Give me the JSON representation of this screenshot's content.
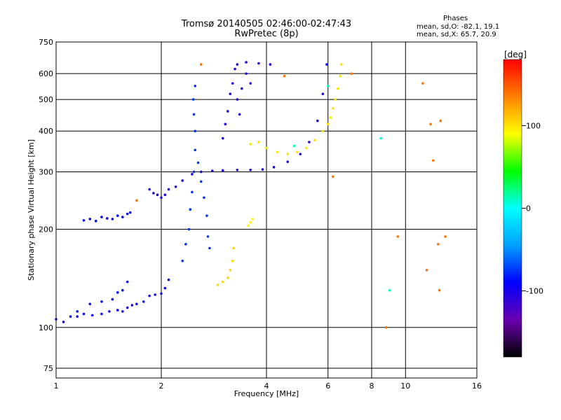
{
  "header": {
    "title": "Tromsø 20140505 02:46:00-02:47:43",
    "subtitle": "RwPretec (8p)",
    "stats_title": "Phases",
    "stats_o": "mean, sd,O: -82.1, 19.1",
    "stats_x": "mean, sd,X: 65.7, 20.9"
  },
  "colorbar": {
    "label": "[deg]",
    "range": [
      -180,
      180
    ],
    "ticks": [
      100,
      0,
      -100
    ],
    "colors": [
      "#000000",
      "#6a00b0",
      "#0000ff",
      "#00a0ff",
      "#00ffff",
      "#00ff00",
      "#ffff00",
      "#ff8000",
      "#ff0000"
    ]
  },
  "chart_data": {
    "type": "scatter",
    "xlabel": "Frequency [MHz]",
    "ylabel": "Stationary phase Virtual Height [km]",
    "x_scale": "log",
    "y_scale": "log",
    "xlim": [
      1,
      16
    ],
    "ylim": [
      70,
      750
    ],
    "x_ticks": [
      1,
      2,
      4,
      6,
      8,
      10,
      16
    ],
    "y_ticks": [
      75,
      100,
      200,
      300,
      400,
      500,
      600,
      750
    ],
    "grid": true,
    "series": [
      {
        "phase": -95,
        "points": [
          [
            1.0,
            106
          ],
          [
            1.05,
            104
          ],
          [
            1.1,
            108
          ],
          [
            1.15,
            108
          ],
          [
            1.2,
            110
          ],
          [
            1.27,
            109
          ],
          [
            1.35,
            110
          ],
          [
            1.42,
            112
          ],
          [
            1.5,
            113
          ],
          [
            1.55,
            112
          ],
          [
            1.6,
            115
          ],
          [
            1.65,
            117
          ],
          [
            1.7,
            118
          ],
          [
            1.78,
            120
          ],
          [
            1.85,
            125
          ],
          [
            1.92,
            126
          ],
          [
            2.0,
            127
          ],
          [
            2.05,
            132
          ],
          [
            2.1,
            140
          ]
        ]
      },
      {
        "phase": -90,
        "points": [
          [
            1.15,
            112
          ],
          [
            1.25,
            118
          ],
          [
            1.35,
            120
          ],
          [
            1.45,
            122
          ],
          [
            1.5,
            128
          ],
          [
            1.55,
            130
          ],
          [
            1.6,
            138
          ]
        ]
      },
      {
        "phase": -90,
        "points": [
          [
            1.2,
            213
          ],
          [
            1.25,
            215
          ],
          [
            1.3,
            212
          ],
          [
            1.35,
            218
          ],
          [
            1.4,
            216
          ],
          [
            1.45,
            215
          ],
          [
            1.5,
            220
          ],
          [
            1.55,
            218
          ],
          [
            1.6,
            223
          ],
          [
            1.63,
            225
          ]
        ]
      },
      {
        "phase": -100,
        "points": [
          [
            1.85,
            265
          ],
          [
            1.9,
            258
          ],
          [
            1.95,
            255
          ],
          [
            2.0,
            250
          ],
          [
            2.05,
            255
          ],
          [
            2.1,
            265
          ],
          [
            2.2,
            270
          ],
          [
            2.3,
            282
          ],
          [
            2.45,
            295
          ],
          [
            2.6,
            300
          ],
          [
            2.8,
            302
          ],
          [
            3.0,
            303
          ],
          [
            3.3,
            304
          ],
          [
            3.6,
            304
          ],
          [
            3.9,
            305
          ],
          [
            4.2,
            310
          ],
          [
            4.6,
            322
          ],
          [
            5.0,
            340
          ],
          [
            5.3,
            370
          ],
          [
            5.6,
            430
          ],
          [
            5.8,
            520
          ],
          [
            5.95,
            640
          ]
        ]
      },
      {
        "phase": -75,
        "points": [
          [
            2.3,
            160
          ],
          [
            2.35,
            180
          ],
          [
            2.4,
            200
          ],
          [
            2.42,
            230
          ],
          [
            2.45,
            260
          ],
          [
            2.48,
            300
          ],
          [
            2.5,
            350
          ],
          [
            2.5,
            400
          ],
          [
            2.48,
            450
          ],
          [
            2.47,
            500
          ],
          [
            2.5,
            550
          ],
          [
            2.55,
            320
          ],
          [
            2.6,
            280
          ],
          [
            2.65,
            250
          ],
          [
            2.7,
            220
          ],
          [
            2.72,
            190
          ],
          [
            2.75,
            175
          ]
        ]
      },
      {
        "phase": -105,
        "points": [
          [
            3.0,
            380
          ],
          [
            3.05,
            420
          ],
          [
            3.1,
            460
          ],
          [
            3.15,
            520
          ],
          [
            3.2,
            560
          ],
          [
            3.25,
            620
          ],
          [
            3.3,
            500
          ],
          [
            3.35,
            450
          ],
          [
            3.4,
            540
          ],
          [
            3.5,
            600
          ],
          [
            3.6,
            560
          ],
          [
            3.3,
            640
          ],
          [
            3.5,
            650
          ],
          [
            3.8,
            645
          ],
          [
            4.1,
            640
          ]
        ]
      },
      {
        "phase": 105,
        "points": [
          [
            2.9,
            135
          ],
          [
            3.0,
            138
          ],
          [
            3.1,
            142
          ],
          [
            3.15,
            150
          ],
          [
            3.2,
            160
          ],
          [
            3.22,
            175
          ]
        ]
      },
      {
        "phase": 95,
        "points": [
          [
            3.55,
            205
          ],
          [
            3.6,
            210
          ],
          [
            3.65,
            215
          ]
        ]
      },
      {
        "phase": 100,
        "points": [
          [
            3.6,
            365
          ],
          [
            3.8,
            370
          ],
          [
            4.0,
            355
          ],
          [
            4.3,
            345
          ],
          [
            4.6,
            340
          ],
          [
            4.9,
            345
          ],
          [
            5.2,
            355
          ],
          [
            5.5,
            375
          ],
          [
            5.8,
            400
          ],
          [
            6.0,
            420
          ],
          [
            6.1,
            440
          ],
          [
            6.2,
            470
          ],
          [
            6.3,
            500
          ],
          [
            6.4,
            540
          ],
          [
            6.5,
            590
          ],
          [
            6.55,
            640
          ]
        ]
      },
      {
        "phase": 140,
        "points": [
          [
            1.7,
            245
          ],
          [
            2.6,
            640
          ],
          [
            4.5,
            590
          ],
          [
            6.2,
            290
          ],
          [
            7.0,
            600
          ],
          [
            11.2,
            560
          ],
          [
            11.8,
            420
          ],
          [
            12.6,
            430
          ],
          [
            12.5,
            130
          ],
          [
            11.5,
            150
          ],
          [
            8.8,
            100
          ],
          [
            9.5,
            190
          ],
          [
            12.4,
            180
          ],
          [
            13.0,
            190
          ],
          [
            12.0,
            325
          ]
        ]
      },
      {
        "phase": 10,
        "points": [
          [
            9.0,
            130
          ],
          [
            6.0,
            550
          ],
          [
            4.8,
            360
          ],
          [
            8.5,
            380
          ]
        ]
      }
    ]
  }
}
